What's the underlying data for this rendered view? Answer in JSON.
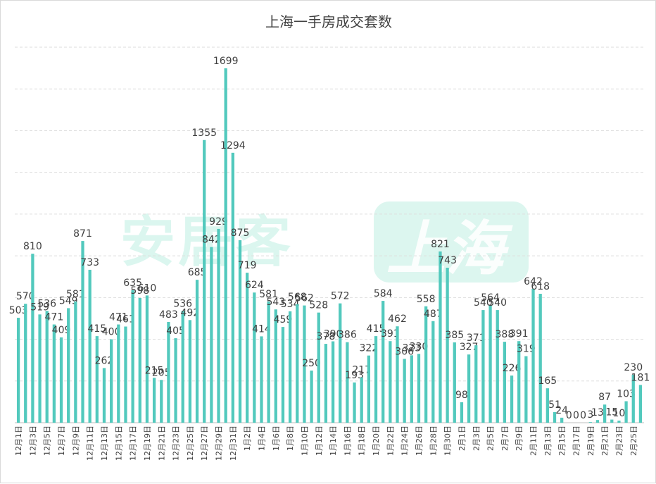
{
  "chart_data": {
    "type": "bar",
    "title": "上海一手房成交套数",
    "xlabel": "",
    "ylabel": "",
    "ylim": [
      0,
      1800
    ],
    "grid": true,
    "color": "#52c9bd",
    "categories": [
      "12月1日",
      "12月2日",
      "12月3日",
      "12月4日",
      "12月5日",
      "12月6日",
      "12月7日",
      "12月8日",
      "12月9日",
      "12月10日",
      "12月11日",
      "12月12日",
      "12月13日",
      "12月14日",
      "12月15日",
      "12月16日",
      "12月17日",
      "12月18日",
      "12月19日",
      "12月20日",
      "12月21日",
      "12月22日",
      "12月23日",
      "12月24日",
      "12月25日",
      "12月26日",
      "12月27日",
      "12月28日",
      "12月29日",
      "12月30日",
      "12月31日",
      "1月1日",
      "1月2日",
      "1月3日",
      "1月4日",
      "1月5日",
      "1月6日",
      "1月7日",
      "1月8日",
      "1月9日",
      "1月10日",
      "1月11日",
      "1月12日",
      "1月13日",
      "1月14日",
      "1月15日",
      "1月16日",
      "1月17日",
      "1月18日",
      "1月19日",
      "1月20日",
      "1月21日",
      "1月22日",
      "1月23日",
      "1月24日",
      "1月25日",
      "1月26日",
      "1月27日",
      "1月28日",
      "1月29日",
      "1月30日",
      "1月31日",
      "2月1日",
      "2月2日",
      "2月3日",
      "2月4日",
      "2月5日",
      "2月6日",
      "2月7日",
      "2月8日",
      "2月9日",
      "2月10日",
      "2月11日",
      "2月12日",
      "2月13日",
      "2月14日",
      "2月15日",
      "2月16日",
      "2月17日",
      "2月18日",
      "2月19日",
      "2月20日",
      "2月21日",
      "2月22日",
      "2月23日",
      "2月24日",
      "2月25日",
      "2月26日"
    ],
    "values": [
      503,
      570,
      810,
      519,
      536,
      471,
      409,
      549,
      581,
      871,
      733,
      415,
      262,
      400,
      471,
      461,
      635,
      598,
      610,
      215,
      205,
      483,
      405,
      536,
      492,
      685,
      1355,
      842,
      929,
      1699,
      1294,
      875,
      719,
      624,
      414,
      581,
      543,
      459,
      534,
      568,
      562,
      250,
      528,
      378,
      390,
      572,
      386,
      193,
      217,
      322,
      415,
      584,
      391,
      462,
      306,
      323,
      330,
      558,
      487,
      821,
      743,
      385,
      98,
      327,
      371,
      540,
      564,
      540,
      388,
      226,
      391,
      319,
      642,
      618,
      165,
      51,
      24,
      0,
      0,
      0,
      3,
      13,
      87,
      15,
      10,
      103,
      230,
      181
    ],
    "tick_labels": [
      "12月1日",
      "12月3日",
      "12月5日",
      "12月7日",
      "12月9日",
      "12月11日",
      "12月13日",
      "12月15日",
      "12月17日",
      "12月19日",
      "12月21日",
      "12月23日",
      "12月25日",
      "12月27日",
      "12月29日",
      "12月31日",
      "1月2日",
      "1月4日",
      "1月6日",
      "1月8日",
      "1月10日",
      "1月12日",
      "1月14日",
      "1月16日",
      "1月18日",
      "1月20日",
      "1月22日",
      "1月24日",
      "1月26日",
      "1月28日",
      "1月30日",
      "2月1日",
      "2月3日",
      "2月5日",
      "2月7日",
      "2月9日",
      "2月11日",
      "2月13日",
      "2月15日",
      "2月17日",
      "2月19日",
      "2月21日",
      "2月23日",
      "2月25日"
    ]
  },
  "watermark": {
    "text": "安居客",
    "badge_text": "上海"
  }
}
